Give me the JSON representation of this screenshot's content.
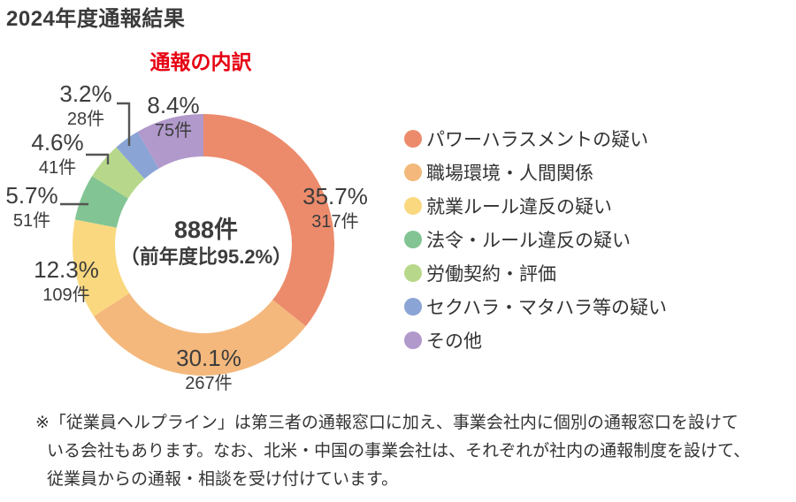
{
  "page_title": "2024年度通報結果",
  "chart_data": {
    "type": "pie",
    "variant": "donut",
    "title": "通報の内訳",
    "title_color": "#e60012",
    "direction": "clockwise",
    "start_angle_deg": 0,
    "legend_position": "right",
    "center_label": {
      "total": "888件",
      "yoy_note": "（前年度比95.2%）"
    },
    "slices": [
      {
        "label": "パワーハラスメントの疑い",
        "percent": 35.7,
        "count": 317,
        "percent_label": "35.7%",
        "count_label": "317件",
        "color": "#ec8b6c"
      },
      {
        "label": "職場環境・人間関係",
        "percent": 30.1,
        "count": 267,
        "percent_label": "30.1%",
        "count_label": "267件",
        "color": "#f4b87c"
      },
      {
        "label": "就業ルール違反の疑い",
        "percent": 12.3,
        "count": 109,
        "percent_label": "12.3%",
        "count_label": "109件",
        "color": "#fad87f"
      },
      {
        "label": "法令・ルール違反の疑い",
        "percent": 5.7,
        "count": 51,
        "percent_label": "5.7%",
        "count_label": "51件",
        "color": "#82c493"
      },
      {
        "label": "労働契約・評価",
        "percent": 4.6,
        "count": 41,
        "percent_label": "4.6%",
        "count_label": "41件",
        "color": "#b7d88a"
      },
      {
        "label": "セクハラ・マタハラ等の疑い",
        "percent": 3.2,
        "count": 28,
        "percent_label": "3.2%",
        "count_label": "28件",
        "color": "#8aa4d5"
      },
      {
        "label": "その他",
        "percent": 8.4,
        "count": 75,
        "percent_label": "8.4%",
        "count_label": "75件",
        "color": "#b199cc"
      }
    ]
  },
  "footnote_lines": [
    "※「従業員ヘルプライン」は第三者の通報窓口に加え、事業会社内に個別の通報窓口を設けて",
    "いる会社もあります。なお、北米・中国の事業会社は、それぞれが社内の通報制度を設けて、",
    "従業員からの通報・相談を受け付けています。"
  ]
}
